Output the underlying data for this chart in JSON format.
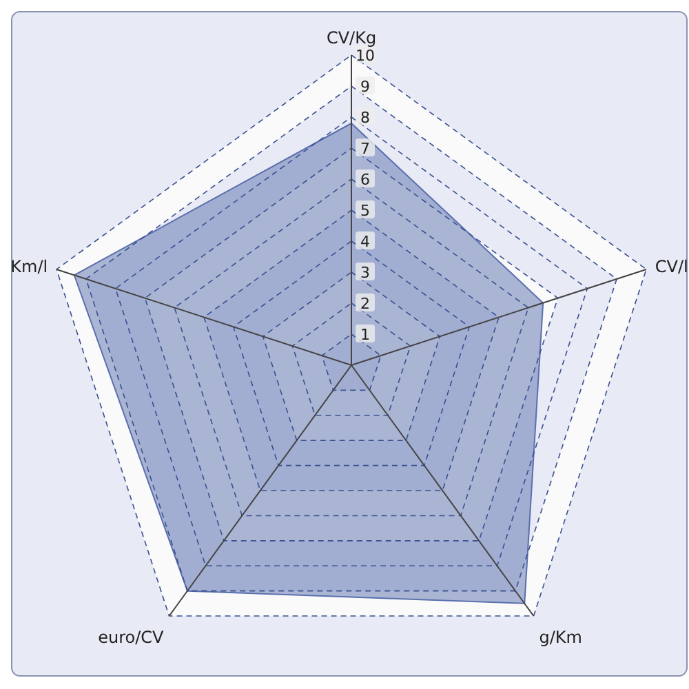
{
  "chart_data": {
    "type": "radar",
    "categories": [
      "CV/Kg",
      "CV/l",
      "g/Km",
      "euro/CV",
      "Km/l"
    ],
    "series": [
      {
        "color": "#5a6fae",
        "values": [
          7.8,
          6.5,
          9.5,
          9.0,
          9.4
        ]
      }
    ],
    "ylim": [
      0,
      10
    ],
    "yticks": [
      1,
      2,
      3,
      4,
      5,
      6,
      7,
      8,
      9,
      10
    ],
    "grid": true
  }
}
